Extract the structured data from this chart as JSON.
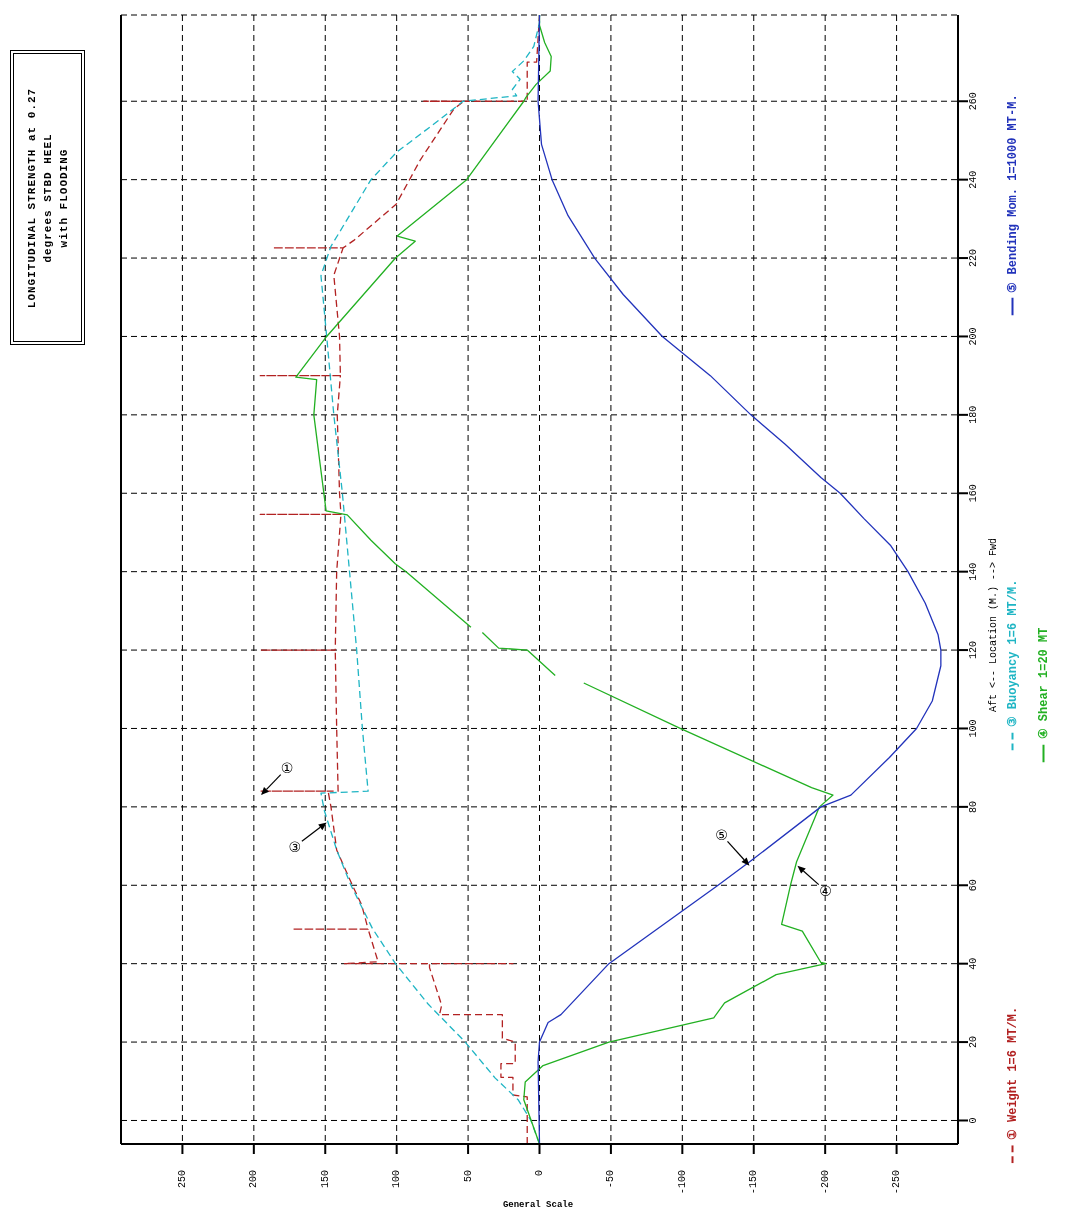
{
  "chart_data": {
    "type": "line",
    "title": "LONGITUDINAL STRENGTH at 0.27 degrees STBD HEEL",
    "subtitle": "with FLOODING",
    "xlabel": "General Scale",
    "ylabel": "Aft <-- Location (M.) --> Fwd",
    "xlim": [
      293,
      -293
    ],
    "xticks": [
      250,
      200,
      150,
      100,
      50,
      0,
      -50,
      -100,
      -150,
      -200,
      -250
    ],
    "ylim": [
      -6,
      282
    ],
    "yticks": [
      0,
      20,
      40,
      60,
      80,
      100,
      120,
      140,
      160,
      180,
      200,
      220,
      240,
      260
    ],
    "grid": true,
    "legend": "right",
    "series": [
      {
        "name": "① Weight 1=6 MT/M.",
        "color": "#b22222",
        "line_style": "dashed",
        "values": [
          -6,
          6,
          6.5,
          11,
          11,
          14.5,
          14.5,
          20,
          21,
          27,
          27,
          29.4,
          39,
          40,
          40,
          40,
          40.5,
          48.8,
          48.8,
          48.8,
          55,
          60,
          69,
          80,
          84,
          84,
          84,
          100,
          120,
          120,
          120,
          140,
          154.6,
          154.6,
          154.6,
          160,
          180,
          190,
          190,
          190,
          200,
          215.6,
          222.6,
          222.6,
          222.6,
          224.5,
          233.7,
          245,
          258,
          260,
          260,
          260,
          270,
          270,
          282
        ],
        "x": [
          8.6,
          8.6,
          18.6,
          18.6,
          27,
          27,
          17,
          17,
          26,
          26,
          70,
          68.5,
          77,
          77,
          18.6,
          137,
          113,
          120,
          173,
          120,
          124.5,
          131,
          142,
          146,
          148,
          195.5,
          141,
          142,
          143,
          195.5,
          143,
          142,
          139,
          195.5,
          139,
          140,
          141.6,
          139.4,
          195.5,
          139.4,
          140,
          144,
          137.5,
          186.7,
          137.5,
          130,
          100.4,
          83.5,
          60,
          53,
          81,
          8.6,
          8.6,
          2,
          0
        ]
      },
      {
        "name": "③ Buoyancy 1=6 MT/M.",
        "color": "#1fb5c4",
        "line_style": "dashed",
        "values": [
          -6,
          0,
          5.3,
          10.8,
          20,
          29.7,
          40,
          49,
          60,
          69,
          79,
          83.5,
          84,
          100,
          120,
          140,
          160,
          180,
          200,
          215.5,
          223,
          226,
          240,
          247,
          255,
          260,
          261.4,
          263,
          265.6,
          267.6,
          270.3,
          274,
          280,
          282
        ],
        "x": [
          0,
          6,
          15,
          31,
          52,
          78,
          100.8,
          117,
          132,
          142,
          150.6,
          153,
          120,
          124,
          128,
          133,
          138,
          144,
          149,
          153,
          146,
          141,
          118,
          100,
          71,
          53.5,
          16,
          19,
          13.6,
          19,
          11,
          4,
          0,
          0
        ]
      },
      {
        "name": "④ Shear 1=20 MT",
        "color": "#22b022",
        "line_style": "solid",
        "values": [
          -6,
          5.3,
          9.8,
          14,
          20,
          26.2,
          30,
          37.2,
          40,
          40.3,
          48.3,
          50,
          60,
          66,
          80,
          83,
          84.9,
          100,
          111.6,
          null,
          113.5,
          120,
          120.5,
          124.5,
          null,
          125.8,
          140,
          142,
          148,
          154.5,
          155.5,
          180,
          189,
          189.6,
          200,
          220,
          224.3,
          225.6,
          240,
          260,
          261,
          264.3,
          267.7,
          271.4,
          275,
          279.4,
          282
        ],
        "x": [
          0,
          11,
          10,
          -2.5,
          -48.6,
          -122,
          -129.6,
          -165.7,
          -200.5,
          -197,
          -184,
          -169.5,
          -175.7,
          -180,
          -196,
          -205.5,
          -190.5,
          -98.5,
          -31,
          -21,
          -11,
          8.6,
          28.6,
          40,
          44,
          48,
          93.4,
          101,
          118,
          134.6,
          149.4,
          158,
          156,
          170.6,
          149,
          100.8,
          87,
          99.6,
          51,
          11,
          9.5,
          2.4,
          -7.5,
          -8.2,
          -3.6,
          0,
          0
        ]
      },
      {
        "name": "⑤ Bending Mom. 1=1000 MT-M.",
        "color": "#2233bb",
        "line_style": "solid",
        "values": [
          -6,
          15,
          20,
          25,
          27,
          40,
          60,
          66.5,
          80,
          83,
          92.6,
          100,
          107,
          116,
          120,
          124,
          132,
          140,
          146.6,
          153.6,
          160,
          164,
          172.5,
          180,
          190,
          200,
          210.7,
          220,
          230.8,
          240,
          249,
          260,
          282
        ],
        "x": [
          0,
          1,
          0,
          -6,
          -15,
          -48.6,
          -125,
          -149,
          -197,
          -218,
          -245,
          -264,
          -275,
          -281,
          -281,
          -279,
          -270,
          -258,
          -246,
          -227,
          -210.5,
          -197,
          -172,
          -148,
          -119.6,
          -86,
          -58.6,
          -38.6,
          -20,
          -8.8,
          -1.4,
          1,
          0
        ]
      }
    ],
    "annotations": [
      {
        "text": "①",
        "x": 195,
        "y": 83
      },
      {
        "text": "③",
        "x": 149,
        "y": 76
      },
      {
        "text": "⑤",
        "x": -147,
        "y": 65
      },
      {
        "text": "④",
        "x": -180.6,
        "y": 65
      }
    ]
  }
}
